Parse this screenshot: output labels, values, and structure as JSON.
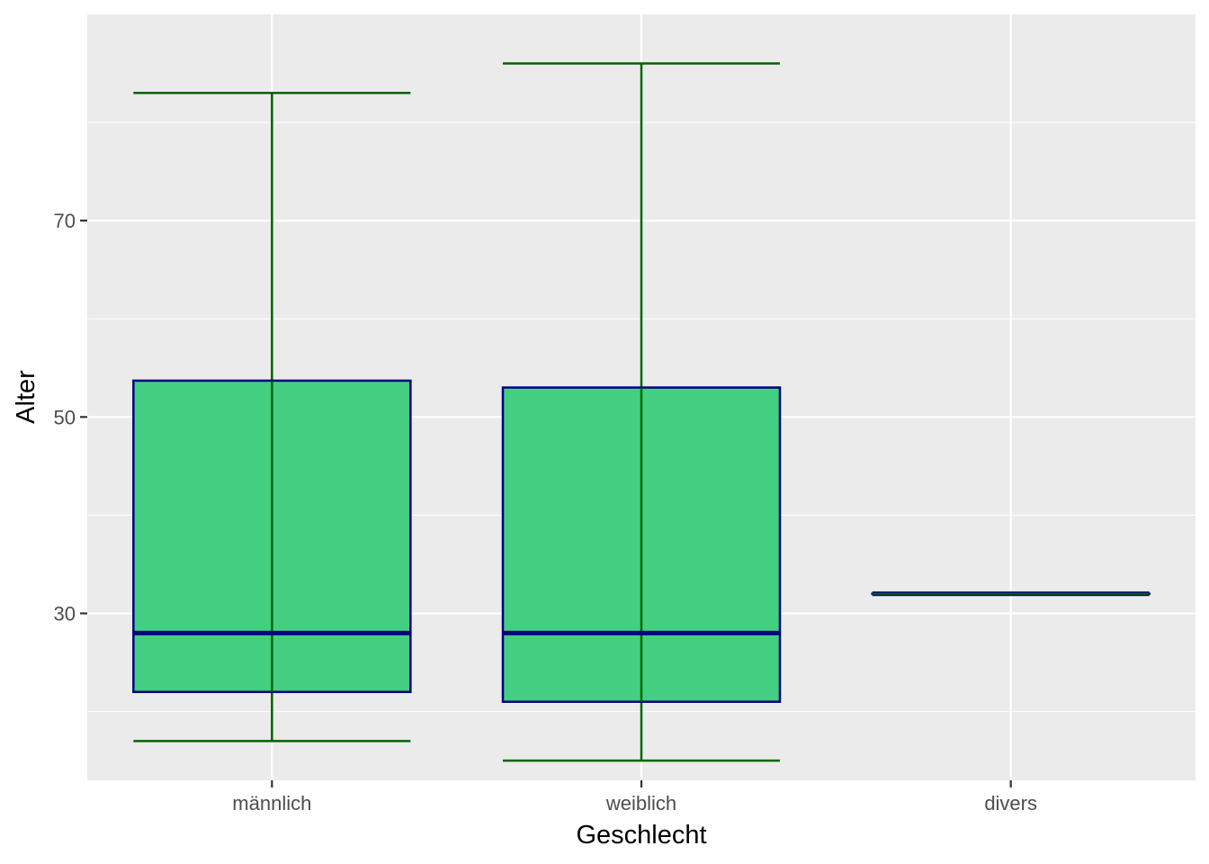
{
  "chart_data": {
    "type": "boxplot",
    "xlabel": "Geschlecht",
    "ylabel": "Alter",
    "categories": [
      "männlich",
      "weiblich",
      "divers"
    ],
    "ylim": [
      13,
      91
    ],
    "yticks": [
      30,
      50,
      70
    ],
    "grid": true,
    "boxes": [
      {
        "category": "männlich",
        "whisker_low": 17,
        "q1": 22,
        "median": 28,
        "q3": 53.7,
        "whisker_high": 83
      },
      {
        "category": "weiblich",
        "whisker_low": 15,
        "q1": 21,
        "median": 28,
        "q3": 53,
        "whisker_high": 86
      },
      {
        "category": "divers",
        "whisker_low": 32,
        "q1": 32,
        "median": 32,
        "q3": 32,
        "whisker_high": 32
      }
    ],
    "colors": {
      "panel": "#ebebeb",
      "grid": "#ffffff",
      "box_fill": "#44ce81",
      "box_outline": "#000080",
      "whisker": "#006400",
      "tick": "#333333"
    }
  }
}
